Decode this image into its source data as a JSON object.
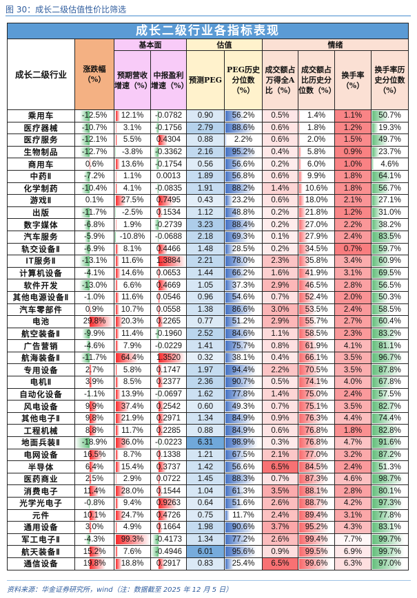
{
  "figure": {
    "title": "图 30：成长二级估值性价比筛选",
    "source_note": "资料来源：华金证券研究所，wind（注：数据截至 2025 年 12 月 5 日）"
  },
  "table": {
    "banner": "成长二级行业各指标表现",
    "groups": {
      "fundamentals": "基本面",
      "valuation": "估值",
      "sentiment": "情绪"
    },
    "columns": [
      "成长二级行业",
      "涨跌幅（%）",
      "预期营收增速（%）",
      "中报盈利增速（%）",
      "预测PEG",
      "PEG历史分位数（%）",
      "成交额占万得全A比（%）",
      "成交额占比历史分位数（%）",
      "换手率（%）",
      "换手率历史分位数（%）"
    ],
    "rows": [
      [
        "乘用车",
        "-12.5%",
        "12.1%",
        "-0.0782",
        "0.90",
        "56.2%",
        "0.5%",
        "1.4%",
        "1.1%",
        "50.7%"
      ],
      [
        "医疗器械",
        "-10.7%",
        "3.1%",
        "-0.1756",
        "2.79",
        "88.6%",
        "0.6%",
        "1.8%",
        "1.2%",
        "19.3%"
      ],
      [
        "医疗服务",
        "-12.1%",
        "5.5%",
        "0.4304",
        "0.88",
        "2.2%",
        "0.6%",
        "2.0%",
        "1.5%",
        "49.7%"
      ],
      [
        "生物制品",
        "-12.7%",
        "-3.8%",
        "-0.3362",
        "2.16",
        "95.2%",
        "0.4%",
        "5.8%",
        "0.9%",
        "23.7%"
      ],
      [
        "商用车",
        "0.6%",
        "13.6%",
        "-0.1754",
        "0.56",
        "56.6%",
        "0.2%",
        "6.0%",
        "1.0%",
        "4.6%"
      ],
      [
        "中药Ⅱ",
        "-7.2%",
        "1.1%",
        "0.0013",
        "1.89",
        "56.8%",
        "0.6%",
        "9.9%",
        "1.8%",
        "64.1%"
      ],
      [
        "化学制药",
        "-10.4%",
        "4.1%",
        "-0.0835",
        "1.91",
        "88.2%",
        "1.4%",
        "10.6%",
        "1.8%",
        "56.7%"
      ],
      [
        "游戏Ⅱ",
        "0.1%",
        "27.5%",
        "0.7495",
        "0.43",
        "23.2%",
        "0.6%",
        "18.0%",
        "2.1%",
        "27.1%"
      ],
      [
        "出版",
        "-11.7%",
        "-2.5%",
        "0.1534",
        "1.12",
        "48.8%",
        "0.2%",
        "21.8%",
        "1.2%",
        "31.0%"
      ],
      [
        "数字媒体",
        "-6.8%",
        "1.9%",
        "-0.2739",
        "3.23",
        "88.4%",
        "0.2%",
        "27.0%",
        "2.2%",
        "38.2%"
      ],
      [
        "汽车服务",
        "-5.9%",
        "-10.8%",
        "-0.0688",
        "2.18",
        "69.3%",
        "0.1%",
        "27.9%",
        "2.4%",
        "83.5%"
      ],
      [
        "轨交设备Ⅱ",
        "-6.9%",
        "8.1%",
        "0.4466",
        "1.48",
        "28.5%",
        "0.2%",
        "34.5%",
        "0.7%",
        "59.7%"
      ],
      [
        "IT服务Ⅱ",
        "-13.1%",
        "11.6%",
        "1.3884",
        "2.21",
        "78.0%",
        "2.3%",
        "35.8%",
        "3.4%",
        "60.9%"
      ],
      [
        "计算机设备",
        "-4.1%",
        "14.6%",
        "0.0653",
        "1.44",
        "66.2%",
        "1.6%",
        "41.9%",
        "3.1%",
        "69.5%"
      ],
      [
        "软件开发",
        "-13.0%",
        "6.6%",
        "0.4669",
        "1.05",
        "37.3%",
        "2.9%",
        "46.5%",
        "2.8%",
        "56.5%"
      ],
      [
        "其他电源设备Ⅱ",
        "-1.0%",
        "11.6%",
        "0.0546",
        "0.96",
        "54.6%",
        "0.7%",
        "52.4%",
        "2.0%",
        "50.3%"
      ],
      [
        "汽车零部件",
        "0.9%",
        "10.7%",
        "0.0558",
        "1.38",
        "86.6%",
        "3.0%",
        "53.5%",
        "2.4%",
        "58.5%"
      ],
      [
        "电池",
        "29.8%",
        "20.3%",
        "0.2265",
        "0.77",
        "51.2%",
        "2.9%",
        "55.7%",
        "2.7%",
        "60.4%"
      ],
      [
        "航空装备Ⅱ",
        "-9.9%",
        "11.4%",
        "-0.1960",
        "2.52",
        "84.6%",
        "1.1%",
        "58.5%",
        "2.3%",
        "83.2%"
      ],
      [
        "广告营销",
        "-4.6%",
        "7.9%",
        "-0.0229",
        "1.41",
        "75.7%",
        "0.8%",
        "61.9%",
        "4.1%",
        "81.1%"
      ],
      [
        "航海装备Ⅱ",
        "-11.7%",
        "64.4%",
        "1.3520",
        "0.32",
        "38.1%",
        "0.4%",
        "66.1%",
        "3.5%",
        "96.7%"
      ],
      [
        "专用设备",
        "2.7%",
        "5.8%",
        "0.1747",
        "1.97",
        "94.4%",
        "2.2%",
        "70.5%",
        "3.5%",
        "87.8%"
      ],
      [
        "电机Ⅱ",
        "3.9%",
        "8.5%",
        "0.2377",
        "2.36",
        "90.7%",
        "0.5%",
        "74.1%",
        "4.0%",
        "67.8%"
      ],
      [
        "自动化设备",
        "-1.1%",
        "13.9%",
        "-0.0697",
        "1.62",
        "77.8%",
        "1.4%",
        "75.0%",
        "2.4%",
        "57.5%"
      ],
      [
        "风电设备",
        "9.9%",
        "37.4%",
        "0.2542",
        "0.60",
        "49.3%",
        "0.7%",
        "75.1%",
        "3.5%",
        "82.7%"
      ],
      [
        "其他电子Ⅱ",
        "9.8%",
        "21.9%",
        "0.2971",
        "1.34",
        "84.9%",
        "0.9%",
        "76.3%",
        "4.4%",
        "74.4%"
      ],
      [
        "工程机械",
        "8.8%",
        "11.7%",
        "0.2285",
        "0.88",
        "84.9%",
        "0.6%",
        "76.8%",
        "1.8%",
        "82.8%"
      ],
      [
        "地面兵装Ⅱ",
        "-18.9%",
        "36.0%",
        "-0.0223",
        "6.31",
        "98.9%",
        "0.3%",
        "76.8%",
        "4.7%",
        "91.6%"
      ],
      [
        "电网设备",
        "16.5%",
        "8.7%",
        "0.1338",
        "1.21",
        "67.5%",
        "2.1%",
        "77.0%",
        "3.2%",
        "87.2%"
      ],
      [
        "半导体",
        "6.4%",
        "15.4%",
        "0.3737",
        "1.42",
        "56.6%",
        "6.5%",
        "84.5%",
        "2.4%",
        "51.3%"
      ],
      [
        "医药商业",
        "2.5%",
        "2.9%",
        "0.0722",
        "1.45",
        "88.3%",
        "0.7%",
        "87.3%",
        "4.6%",
        "98.7%"
      ],
      [
        "消费电子",
        "11.4%",
        "28.0%",
        "0.1544",
        "1.04",
        "61.3%",
        "3.5%",
        "88.1%",
        "2.8%",
        "80.1%"
      ],
      [
        "光学光电子",
        "-0.8%",
        "9.4%",
        "0.9263",
        "0.64",
        "51.6%",
        "2.6%",
        "88.7%",
        "4.2%",
        "97.3%"
      ],
      [
        "元件",
        "10.1%",
        "24.7%",
        "0.4726",
        "0.75",
        "11.7%",
        "2.4%",
        "89.4%",
        "3.1%",
        "77.8%"
      ],
      [
        "通用设备",
        "3.0%",
        "4.9%",
        "0.1664",
        "1.98",
        "90.6%",
        "3.7%",
        "95.2%",
        "4.3%",
        "83.1%"
      ],
      [
        "军工电子Ⅱ",
        "-4.3%",
        "99.3%",
        "-0.4173",
        "1.34",
        "77.2%",
        "2.6%",
        "99.4%",
        "7.7%",
        "99.7%"
      ],
      [
        "航天装备Ⅱ",
        "15.2%",
        "7.6%",
        "-0.4946",
        "6.01",
        "95.6%",
        "0.9%",
        "99.5%",
        "6.9%",
        "99.7%"
      ],
      [
        "通信设备",
        "19.8%",
        "18.8%",
        "0.2917",
        "0.83",
        "25.4%",
        "6.5%",
        "99.6%",
        "6.3%",
        "97.0%"
      ]
    ]
  },
  "colors": {
    "banner": "#5b9bd5",
    "change_header": "#f4b183",
    "fundamentals_header": "#f8cbf8",
    "valuation_header": "#fff2cc",
    "sentiment_header": "#fbe0d4",
    "bar_negative": "#63be7b",
    "bar_positive": "#f8696b",
    "bar_blue": "#4472c4",
    "source_text": "#2f5d9e"
  }
}
